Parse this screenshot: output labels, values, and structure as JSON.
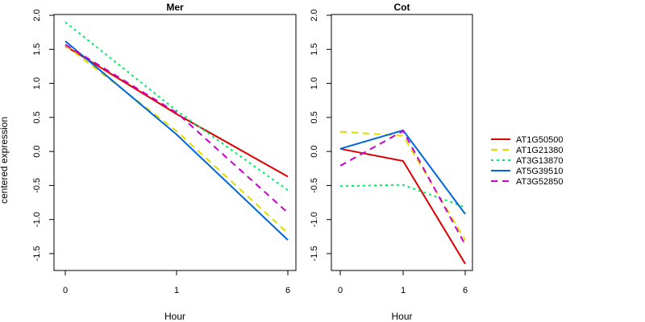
{
  "figure": {
    "ylabel": "centered expression"
  },
  "chart_data": [
    {
      "type": "line",
      "title": "Mer",
      "xlabel": "Hour",
      "ylabel": "centered expression",
      "categories": [
        "0",
        "1",
        "6"
      ],
      "ylim": [
        -1.75,
        2.0
      ],
      "yticks": [
        -1.5,
        -1.0,
        -0.5,
        0.0,
        0.5,
        1.0,
        1.5,
        2.0
      ],
      "ytick_labels": [
        "-1.5",
        "-1.0",
        "-0.5",
        "0.0",
        "0.5",
        "1.0",
        "1.5",
        "2.0"
      ],
      "series": [
        {
          "name": "AT1G50500",
          "values": [
            1.55,
            0.55,
            -0.37
          ],
          "color": "#dd0000",
          "dash": "solid"
        },
        {
          "name": "AT1G21380",
          "values": [
            1.56,
            0.3,
            -1.2
          ],
          "color": "#dddd00",
          "dash": "dashed"
        },
        {
          "name": "AT3G13870",
          "values": [
            1.9,
            0.6,
            -0.57
          ],
          "color": "#00ee66",
          "dash": "dotted"
        },
        {
          "name": "AT5G39510",
          "values": [
            1.62,
            0.25,
            -1.3
          ],
          "color": "#0066dd",
          "dash": "solid"
        },
        {
          "name": "AT3G52850",
          "values": [
            1.57,
            0.57,
            -0.9
          ],
          "color": "#cc00cc",
          "dash": "dashed"
        }
      ]
    },
    {
      "type": "line",
      "title": "Cot",
      "xlabel": "Hour",
      "categories": [
        "0",
        "1",
        "6"
      ],
      "ylim": [
        -1.75,
        2.0
      ],
      "yticks": [
        -1.5,
        -1.0,
        -0.5,
        0.0,
        0.5,
        1.0,
        1.5,
        2.0
      ],
      "ytick_labels": [
        "-1.5",
        "-1.0",
        "-0.5",
        "0.0",
        "0.5",
        "1.0",
        "1.5",
        "2.0"
      ],
      "series": [
        {
          "name": "AT1G50500",
          "values": [
            0.04,
            -0.14,
            -1.65
          ],
          "color": "#dd0000",
          "dash": "solid"
        },
        {
          "name": "AT1G21380",
          "values": [
            0.29,
            0.23,
            -1.3
          ],
          "color": "#dddd00",
          "dash": "dashed"
        },
        {
          "name": "AT3G13870",
          "values": [
            -0.51,
            -0.49,
            -0.82
          ],
          "color": "#00ee66",
          "dash": "dotted"
        },
        {
          "name": "AT5G39510",
          "values": [
            0.04,
            0.31,
            -0.92
          ],
          "color": "#0066dd",
          "dash": "solid"
        },
        {
          "name": "AT3G52850",
          "values": [
            -0.21,
            0.3,
            -1.37
          ],
          "color": "#cc00cc",
          "dash": "dashed"
        }
      ]
    }
  ],
  "legend": {
    "placement": "right",
    "items": [
      {
        "name": "AT1G50500",
        "color": "#dd0000",
        "dash": "solid"
      },
      {
        "name": "AT1G21380",
        "color": "#dddd00",
        "dash": "dashed"
      },
      {
        "name": "AT3G13870",
        "color": "#00ee66",
        "dash": "dotted"
      },
      {
        "name": "AT5G39510",
        "color": "#0066dd",
        "dash": "solid"
      },
      {
        "name": "AT3G52850",
        "color": "#cc00cc",
        "dash": "dashed"
      }
    ]
  }
}
